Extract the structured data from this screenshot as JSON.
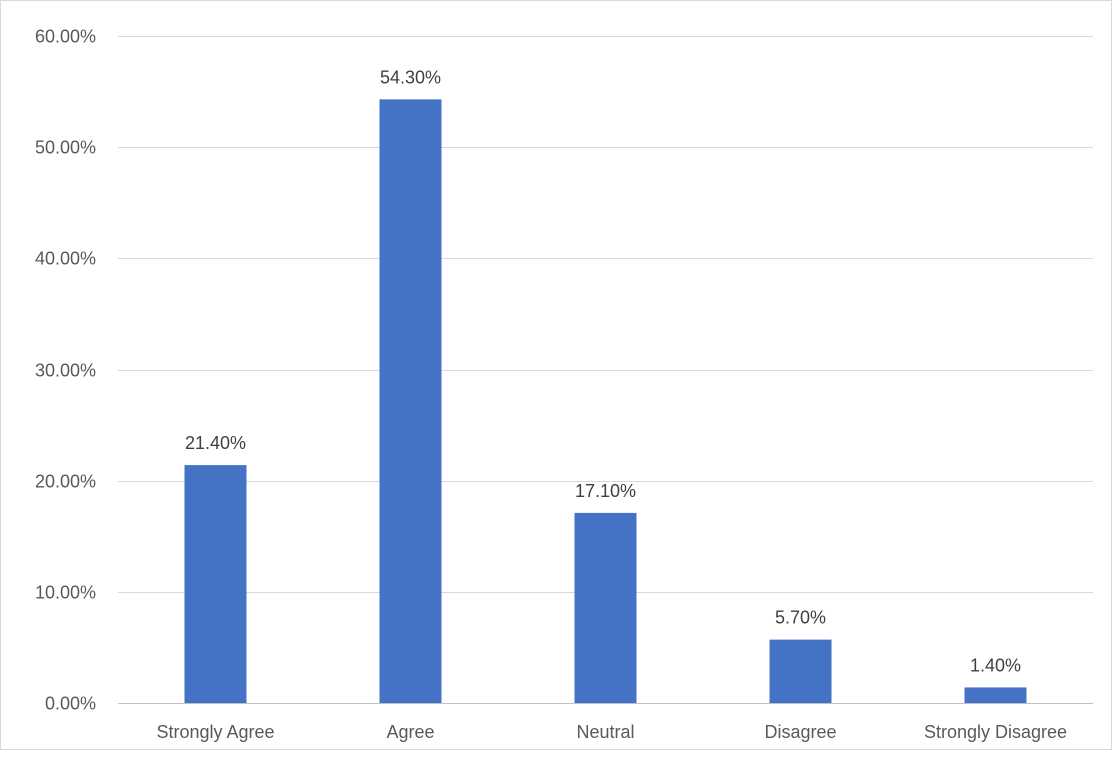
{
  "chart_data": {
    "type": "bar",
    "title": "",
    "xlabel": "",
    "ylabel": "",
    "categories": [
      "Strongly Agree",
      "Agree",
      "Neutral",
      "Disagree",
      "Strongly Disagree"
    ],
    "values": [
      21.4,
      54.3,
      17.1,
      5.7,
      1.4
    ],
    "data_labels": [
      "21.40%",
      "54.30%",
      "17.10%",
      "5.70%",
      "1.40%"
    ],
    "ylim": [
      0,
      60
    ],
    "y_ticks": [
      0,
      10,
      20,
      30,
      40,
      50,
      60
    ],
    "y_tick_labels": [
      "0.00%",
      "10.00%",
      "20.00%",
      "30.00%",
      "40.00%",
      "50.00%",
      "60.00%"
    ],
    "grid": true,
    "legend": "none",
    "bar_color": "#4472C4"
  }
}
